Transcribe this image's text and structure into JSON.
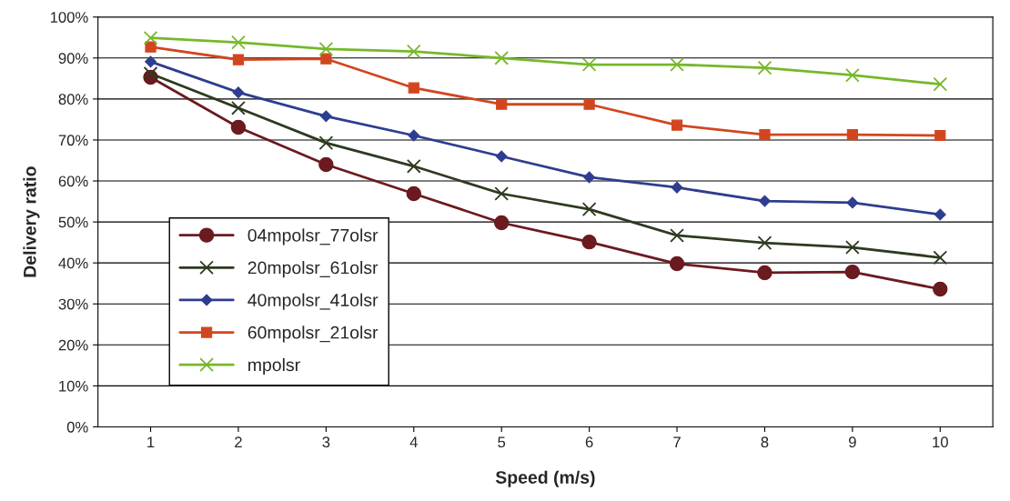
{
  "chart_data": {
    "type": "line",
    "xlabel": "Speed (m/s)",
    "ylabel": "Delivery ratio",
    "categories": [
      "1",
      "2",
      "3",
      "4",
      "5",
      "6",
      "7",
      "8",
      "9",
      "10"
    ],
    "series": [
      {
        "name": "04mpolsr_77olsr",
        "color": "#6b1a1f",
        "marker": "circle",
        "values": [
          85.3,
          73.1,
          64.0,
          56.9,
          49.8,
          45.1,
          39.8,
          37.6,
          37.8,
          33.6
        ]
      },
      {
        "name": "20mpolsr_61olsr",
        "color": "#2d3a1f",
        "marker": "cross",
        "values": [
          86.2,
          77.8,
          69.3,
          63.6,
          56.9,
          53.1,
          46.7,
          44.9,
          43.8,
          41.3
        ]
      },
      {
        "name": "40mpolsr_41olsr",
        "color": "#2e3d8f",
        "marker": "diamond",
        "values": [
          89.1,
          81.6,
          75.8,
          71.1,
          66.0,
          60.9,
          58.4,
          55.1,
          54.7,
          51.8
        ]
      },
      {
        "name": "60mpolsr_21olsr",
        "color": "#d2461f",
        "marker": "square",
        "values": [
          92.7,
          89.6,
          89.8,
          82.7,
          78.7,
          78.7,
          73.6,
          71.3,
          71.3,
          71.1
        ]
      },
      {
        "name": "mpolsr",
        "color": "#76b82a",
        "marker": "cross",
        "values": [
          94.9,
          93.8,
          92.2,
          91.6,
          90.0,
          88.4,
          88.4,
          87.6,
          85.8,
          83.6
        ]
      }
    ],
    "ylim": [
      0,
      100
    ],
    "yticks": [
      {
        "value": 0,
        "label": "0%"
      },
      {
        "value": 10,
        "label": "10%"
      },
      {
        "value": 20,
        "label": "20%"
      },
      {
        "value": 30,
        "label": "30%"
      },
      {
        "value": 40,
        "label": "40%"
      },
      {
        "value": 50,
        "label": "50%"
      },
      {
        "value": 60,
        "label": "60%"
      },
      {
        "value": 70,
        "label": "70%"
      },
      {
        "value": 80,
        "label": "80%"
      },
      {
        "value": 90,
        "label": "90%"
      },
      {
        "value": 100,
        "label": "100%"
      }
    ],
    "grid": "y",
    "legend": "bottom left",
    "line_style": "solid"
  }
}
